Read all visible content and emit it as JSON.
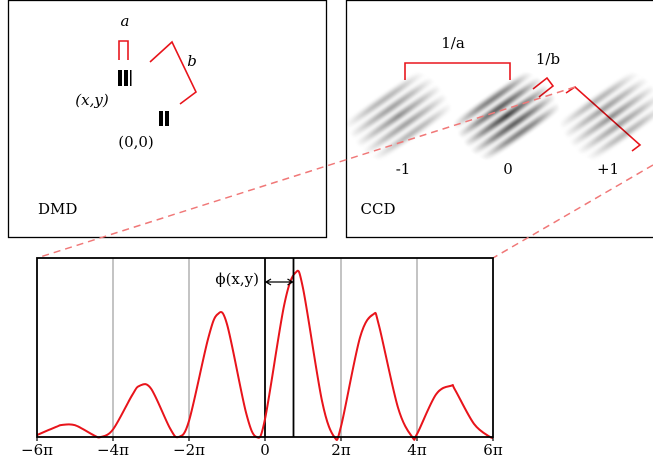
{
  "dmd": {
    "label": "DMD",
    "a": "a",
    "b": "b",
    "pixel": "(x,y)",
    "origin": "(0,0)"
  },
  "ccd": {
    "label": "CCD",
    "inv_a": "1/a",
    "inv_b": "1/b",
    "orders": [
      "-1",
      "0",
      "+1"
    ]
  },
  "chart_data": {
    "type": "line",
    "x": [
      -6,
      -5.5,
      -5.35,
      -5,
      -4.5,
      -4.325,
      -4,
      -3.5,
      -3.3,
      -3,
      -2.5,
      -2.275,
      -2,
      -1.5,
      -1.25,
      -1,
      -0.5,
      -0.225,
      0,
      0.5,
      0.8,
      1,
      1.5,
      1.825,
      2,
      2.5,
      2.85,
      3,
      3.5,
      3.875,
      4,
      4.5,
      4.9,
      5,
      5.5,
      5.925,
      6
    ],
    "series": [
      {
        "color": "#e8141b",
        "values": [
          0.012,
          0.061,
          0.073,
          0.072,
          0.01,
          0,
          0.046,
          0.253,
          0.312,
          0.295,
          0.053,
          0,
          0.098,
          0.596,
          0.747,
          0.687,
          0.149,
          0,
          0.109,
          0.798,
          1.0,
          0.906,
          0.22,
          0,
          0.064,
          0.606,
          0.747,
          0.678,
          0.179,
          0,
          0.018,
          0.259,
          0.312,
          0.288,
          0.08,
          0,
          0.002
        ]
      }
    ],
    "xlim": [
      -6,
      6
    ],
    "ylim": [
      0,
      1.09
    ],
    "xticks": [
      {
        "value": -6,
        "label": "−6π"
      },
      {
        "value": -4,
        "label": "−4π"
      },
      {
        "value": -2,
        "label": "−2π"
      },
      0,
      {
        "value": 2,
        "label": "2π"
      },
      {
        "value": 4,
        "label": "4π"
      },
      {
        "value": 6,
        "label": "6π"
      }
    ],
    "grid": true,
    "marker_x": 0.75,
    "marker_label": "ϕ(x,y)"
  }
}
